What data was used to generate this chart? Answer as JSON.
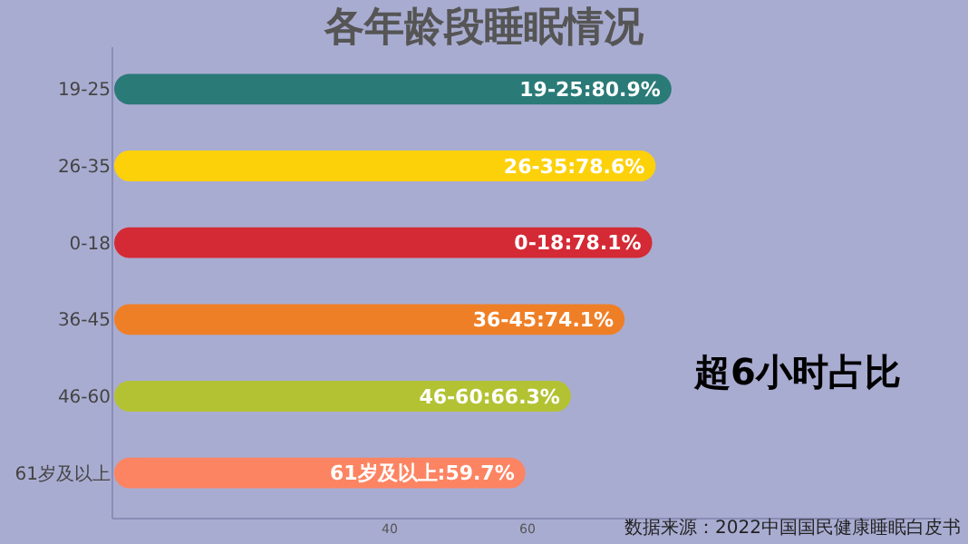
{
  "chart_data": {
    "type": "bar",
    "orientation": "horizontal",
    "title": "各年龄段睡眠情况",
    "categories": [
      "19-25",
      "26-35",
      "0-18",
      "36-45",
      "46-60",
      "61岁及以上"
    ],
    "values": [
      80.9,
      78.6,
      78.1,
      74.1,
      66.3,
      59.7
    ],
    "colors": [
      "#2a7a78",
      "#fdd10a",
      "#d42a35",
      "#ef7f26",
      "#b3c233",
      "#fc8462"
    ],
    "value_labels": [
      "19-25:80.9%",
      "26-35:78.6%",
      "0-18:78.1%",
      "36-45:74.1%",
      "46-60:66.3%",
      "61岁及以上:59.7%"
    ],
    "xlim": [
      0,
      120
    ],
    "xticks": [
      40,
      60
    ],
    "grid": false,
    "annotations": [
      "超6小时占比",
      "数据来源：2022中国国民健康睡眠白皮书"
    ]
  }
}
